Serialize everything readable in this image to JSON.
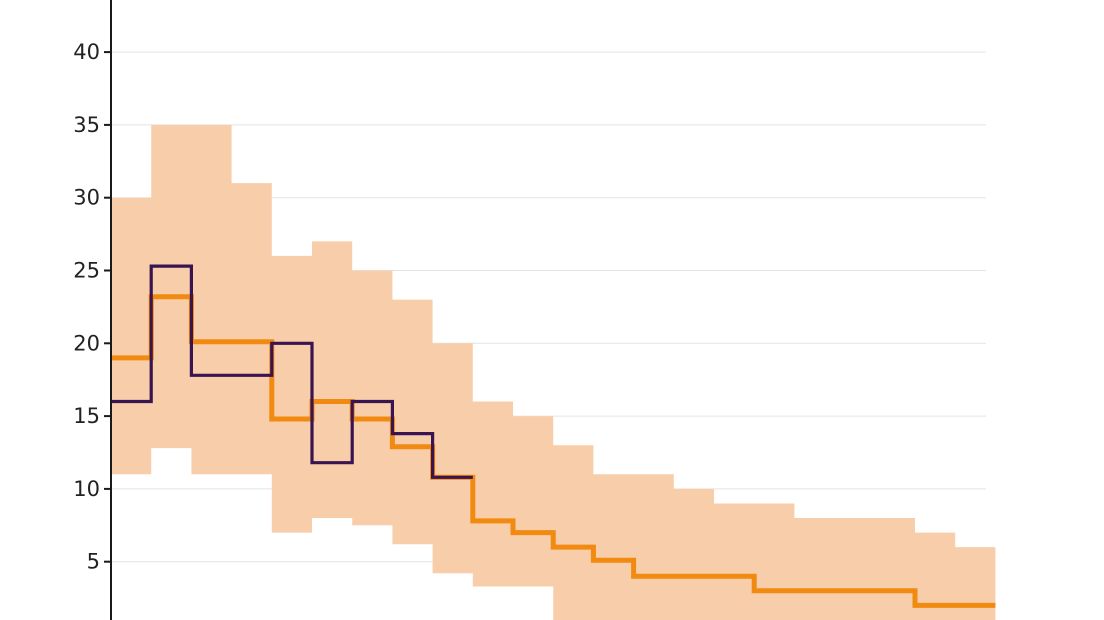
{
  "chart_data": {
    "type": "line",
    "step": true,
    "title": "",
    "xlabel": "",
    "ylabel": "",
    "ylim": [
      0,
      42
    ],
    "y_ticks": [
      "5",
      "10",
      "15",
      "20",
      "25",
      "30",
      "35",
      "40"
    ],
    "grid": "horizontal",
    "x_bins": 22,
    "band": {
      "name": "",
      "color": "#f8ceaa",
      "lower": [
        11,
        12.8,
        11,
        11,
        7,
        8,
        7.5,
        6.2,
        4.2,
        3.3,
        3.3,
        0,
        0,
        0,
        0,
        0,
        0,
        0,
        0,
        0,
        0,
        0
      ],
      "upper": [
        30,
        35,
        35,
        31,
        26,
        27,
        25,
        23,
        20,
        16,
        15,
        13,
        11,
        11,
        10,
        9,
        9,
        8,
        8,
        8,
        7,
        6
      ]
    },
    "series": [
      {
        "name": "",
        "color": "#f08a10",
        "values": [
          19,
          23.2,
          20.1,
          20.1,
          14.8,
          16,
          14.8,
          12.9,
          10.8,
          7.8,
          7,
          6,
          5.1,
          4,
          4,
          4,
          3,
          3,
          3,
          3,
          2,
          2
        ]
      },
      {
        "name": "",
        "color": "#3a1450",
        "values": [
          16,
          25.3,
          17.8,
          17.8,
          20,
          11.8,
          16,
          13.8,
          10.8
        ]
      }
    ]
  }
}
